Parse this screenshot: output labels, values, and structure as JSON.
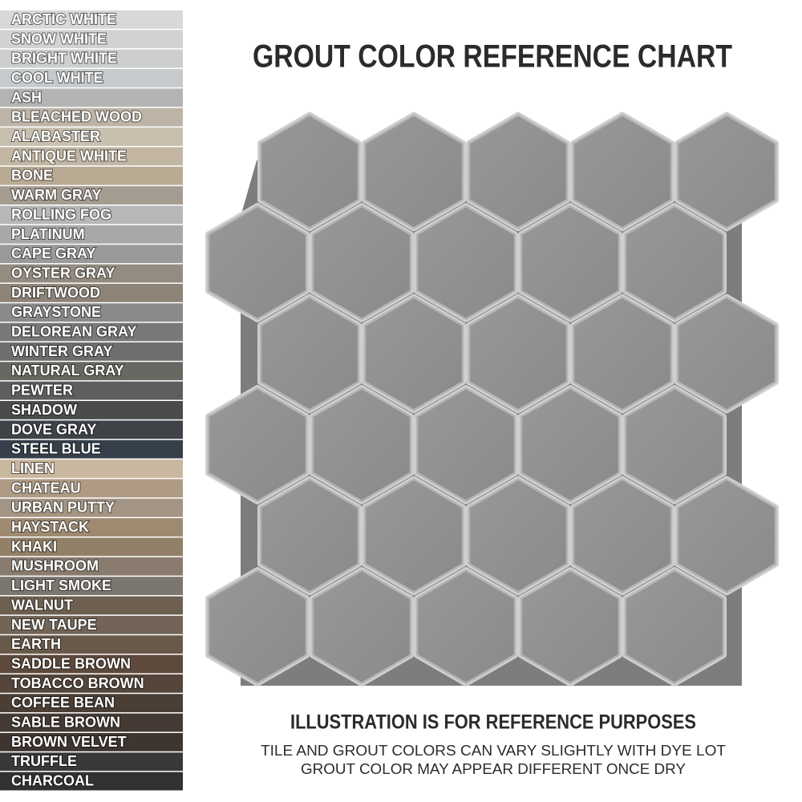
{
  "title": "GROUT COLOR REFERENCE CHART",
  "swatches": [
    {
      "name": "ARCTIC WHITE",
      "color": "#d8d8d6"
    },
    {
      "name": "SNOW WHITE",
      "color": "#d2d3d1"
    },
    {
      "name": "BRIGHT WHITE",
      "color": "#cdcfcf"
    },
    {
      "name": "COOL WHITE",
      "color": "#c6cacc"
    },
    {
      "name": "ASH",
      "color": "#b3b4b3"
    },
    {
      "name": "BLEACHED WOOD",
      "color": "#bdb4a7"
    },
    {
      "name": "ALABASTER",
      "color": "#c8bfaf"
    },
    {
      "name": "ANTIQUE WHITE",
      "color": "#c3b7a3"
    },
    {
      "name": "BONE",
      "color": "#b9aa94"
    },
    {
      "name": "WARM GRAY",
      "color": "#a59c91"
    },
    {
      "name": "ROLLING FOG",
      "color": "#b5b7b8"
    },
    {
      "name": "PLATINUM",
      "color": "#a6a8a9"
    },
    {
      "name": "CAPE GRAY",
      "color": "#999b9a"
    },
    {
      "name": "OYSTER GRAY",
      "color": "#948c81"
    },
    {
      "name": "DRIFTWOOD",
      "color": "#8d8377"
    },
    {
      "name": "GRAYSTONE",
      "color": "#898b8a"
    },
    {
      "name": "DELOREAN GRAY",
      "color": "#77797a"
    },
    {
      "name": "WINTER GRAY",
      "color": "#6e6f6c"
    },
    {
      "name": "NATURAL GRAY",
      "color": "#696761"
    },
    {
      "name": "PEWTER",
      "color": "#5d5e5f"
    },
    {
      "name": "SHADOW",
      "color": "#4a4b4b"
    },
    {
      "name": "DOVE GRAY",
      "color": "#3f4347"
    },
    {
      "name": "STEEL BLUE",
      "color": "#35404b"
    },
    {
      "name": "LINEN",
      "color": "#cab79f"
    },
    {
      "name": "CHATEAU",
      "color": "#af9a84"
    },
    {
      "name": "URBAN PUTTY",
      "color": "#a39583"
    },
    {
      "name": "HAYSTACK",
      "color": "#9e8a71"
    },
    {
      "name": "KHAKI",
      "color": "#918067"
    },
    {
      "name": "MUSHROOM",
      "color": "#897c6f"
    },
    {
      "name": "LIGHT SMOKE",
      "color": "#7b776f"
    },
    {
      "name": "WALNUT",
      "color": "#6d6051"
    },
    {
      "name": "NEW TAUPE",
      "color": "#726557"
    },
    {
      "name": "EARTH",
      "color": "#695949"
    },
    {
      "name": "SADDLE BROWN",
      "color": "#5d4a3c"
    },
    {
      "name": "TOBACCO BROWN",
      "color": "#55453a"
    },
    {
      "name": "COFFEE BEAN",
      "color": "#4b3e35"
    },
    {
      "name": "SABLE BROWN",
      "color": "#453a33"
    },
    {
      "name": "BROWN VELVET",
      "color": "#3e3530"
    },
    {
      "name": "TRUFFLE",
      "color": "#3b3937"
    },
    {
      "name": "CHARCOAL",
      "color": "#323232"
    }
  ],
  "notes": {
    "heading": "ILLUSTRATION IS FOR REFERENCE PURPOSES",
    "lines": [
      "TILE AND GROUT COLORS CAN VARY SLIGHTLY WITH DYE LOT",
      "GROUT COLOR MAY APPEAR DIFFERENT ONCE DRY"
    ]
  }
}
